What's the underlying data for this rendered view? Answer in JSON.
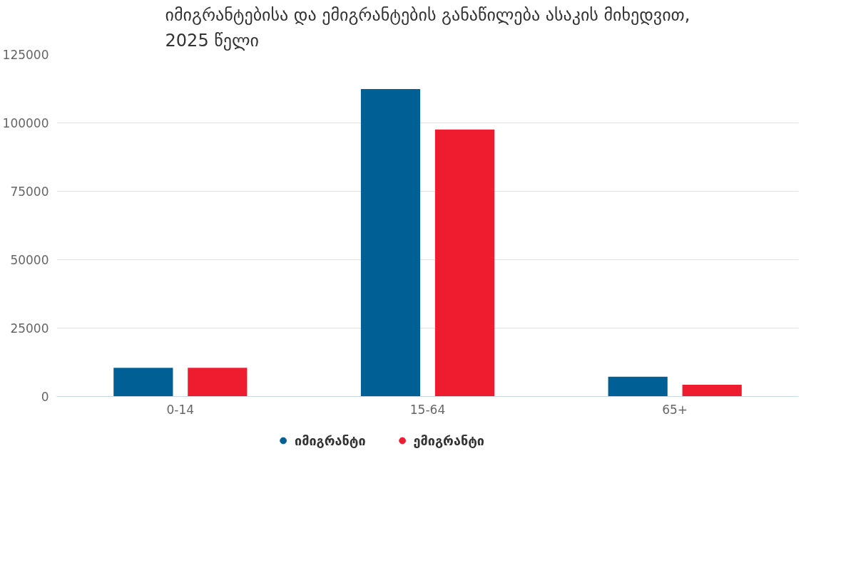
{
  "chart_data": {
    "type": "bar",
    "title": "იმიგრანტებისა და ემიგრანტების განაწილება ასაკის მიხედვით,\n2025 წელი",
    "categories": [
      "0-14",
      "15-64",
      "65+"
    ],
    "series": [
      {
        "name": "იმიგრანტი",
        "color": "#006096",
        "values": [
          10500,
          112400,
          7200
        ]
      },
      {
        "name": "ემიგრანტი",
        "color": "#ed1c2e",
        "values": [
          10500,
          97600,
          4300
        ]
      }
    ],
    "ylim": [
      0,
      125000
    ],
    "yticks": [
      0,
      25000,
      50000,
      75000,
      100000,
      125000
    ],
    "grid": "y",
    "legend": "bottom"
  }
}
